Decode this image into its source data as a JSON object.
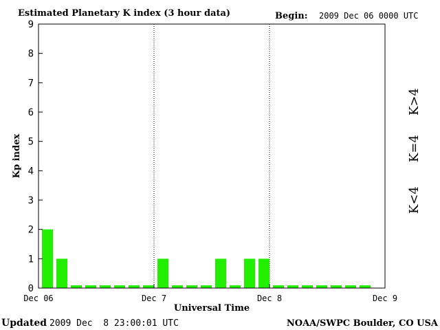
{
  "header": {
    "title": "Estimated Planetary K index (3 hour data)",
    "begin_label": "Begin:",
    "begin_value": "2009 Dec 06 0000 UTC"
  },
  "footer": {
    "updated_label": "Updated",
    "updated_value": "2009 Dec  8 23:00:01 UTC",
    "source": "NOAA/SWPC Boulder, CO USA"
  },
  "legend": {
    "high": {
      "label": "K>4",
      "color": "#ff2a00"
    },
    "equal": {
      "label": "K=4",
      "color": "#ffd800"
    },
    "low": {
      "label": "K<4",
      "color": "#22ee00"
    }
  },
  "chart_data": {
    "type": "bar",
    "title": "Estimated Planetary K index (3 hour data)",
    "xlabel": "Universal Time",
    "ylabel": "Kp index",
    "ylim": [
      0,
      9
    ],
    "y_ticks": [
      "0",
      "1",
      "2",
      "3",
      "4",
      "5",
      "6",
      "7",
      "8",
      "9"
    ],
    "x_ticks": [
      "Dec 06",
      "Dec 7",
      "Dec 8",
      "Dec 9"
    ],
    "grid": "vertical dotted lines at day boundaries",
    "bar_color": "#22ee00",
    "slots_per_day": 8,
    "days": 3,
    "values": [
      2,
      1,
      0,
      0,
      0,
      0,
      0,
      0,
      1,
      0,
      0,
      0,
      1,
      0,
      1,
      1,
      0,
      0,
      0,
      0,
      0,
      0,
      0
    ]
  }
}
